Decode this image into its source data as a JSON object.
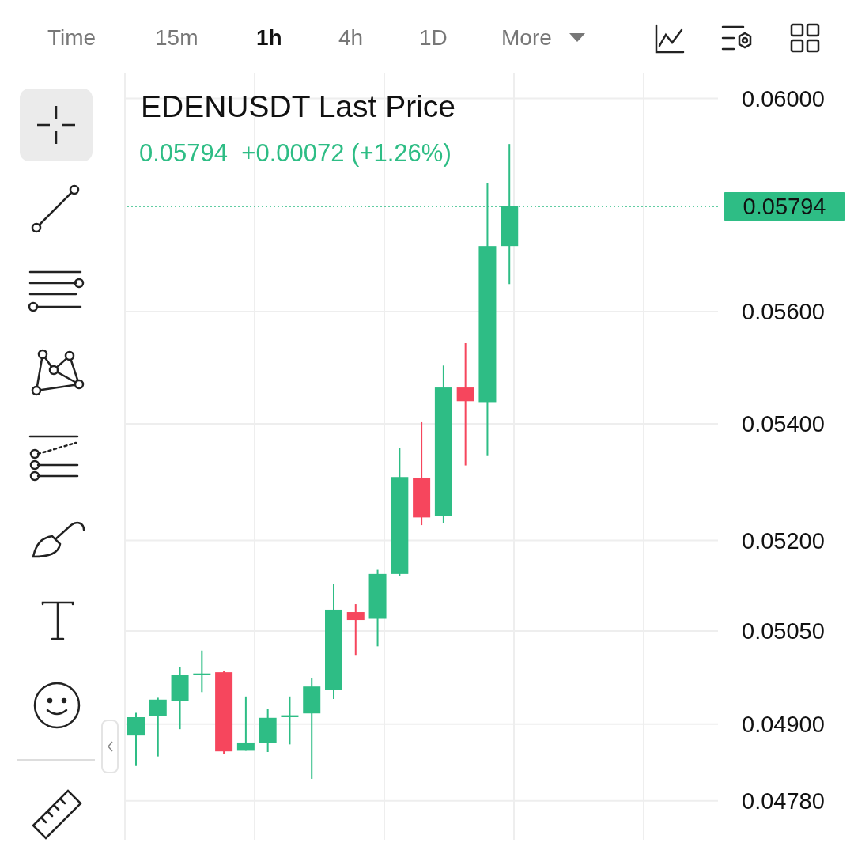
{
  "chart_data": {
    "type": "candlestick",
    "title": "EDENUSDT Last Price",
    "subtitle": "0.05794  +0.00072 (+1.26%)",
    "categories": [
      null,
      null,
      null,
      null,
      null,
      null,
      null,
      null,
      null,
      null,
      null,
      null,
      null,
      null,
      null,
      null,
      null,
      null,
      null,
      null,
      null,
      null,
      null,
      null,
      null,
      null,
      null
    ],
    "ohlc": [
      [
        0.04882,
        0.04918,
        0.04834,
        0.04911
      ],
      [
        0.04913,
        0.04942,
        0.04849,
        0.04939
      ],
      [
        0.04937,
        0.04991,
        0.04892,
        0.04979
      ],
      [
        0.04979,
        0.05018,
        0.04951,
        0.04981
      ],
      [
        0.04983,
        0.04985,
        0.04853,
        0.04857
      ],
      [
        0.04858,
        0.04944,
        0.04858,
        0.04871
      ],
      [
        0.0487,
        0.04924,
        0.04856,
        0.0491
      ],
      [
        0.04911,
        0.04944,
        0.04868,
        0.04914
      ],
      [
        0.04917,
        0.04974,
        0.04814,
        0.0496
      ],
      [
        0.04954,
        0.05128,
        0.0494,
        0.05085
      ],
      [
        0.05081,
        0.05094,
        0.05011,
        0.05068
      ],
      [
        0.0507,
        0.05151,
        0.05025,
        0.05144
      ],
      [
        0.05144,
        0.05358,
        0.05141,
        0.05308
      ],
      [
        0.05307,
        0.05403,
        0.05226,
        0.05239
      ],
      [
        0.05242,
        0.05503,
        0.05229,
        0.05464
      ],
      [
        0.05464,
        0.05543,
        0.05328,
        0.0544
      ],
      [
        0.05437,
        0.05837,
        0.05344,
        0.0572
      ],
      [
        0.0572,
        0.05912,
        0.0565,
        0.05794
      ],
      null,
      null,
      null,
      null,
      null,
      null,
      null,
      null,
      null
    ],
    "colors": [
      "#2ebd85",
      "#2ebd85",
      "#2ebd85",
      "#2ebd85",
      "#f6465d",
      "#2ebd85",
      "#2ebd85",
      "#2ebd85",
      "#2ebd85",
      "#2ebd85",
      "#f6465d",
      "#2ebd85",
      "#2ebd85",
      "#f6465d",
      "#2ebd85",
      "#f6465d",
      "#2ebd85",
      "#2ebd85",
      null,
      null,
      null,
      null,
      null,
      null,
      null,
      null,
      null
    ],
    "log": true,
    "ylim": [
      0.0472,
      0.0605
    ],
    "yticks": [
      {
        "value": 0.06,
        "label": "0.06000"
      },
      {
        "value": 0.056,
        "label": "0.05600"
      },
      {
        "value": 0.054,
        "label": "0.05400"
      },
      {
        "value": 0.052,
        "label": "0.05200"
      },
      {
        "value": 0.0505,
        "label": "0.05050"
      },
      {
        "value": 0.049,
        "label": "0.04900"
      },
      {
        "value": 0.0478,
        "label": "0.04780"
      }
    ],
    "grid": true,
    "tick_labels": "y",
    "ref_lines": [
      {
        "axis": "y",
        "value": 0.05794,
        "label": "0.05794",
        "color": "#2ebd85",
        "line_style": "dotted"
      }
    ],
    "annotations": [
      "Time",
      "15m",
      "1h",
      "4h",
      "1D",
      "More"
    ]
  }
}
